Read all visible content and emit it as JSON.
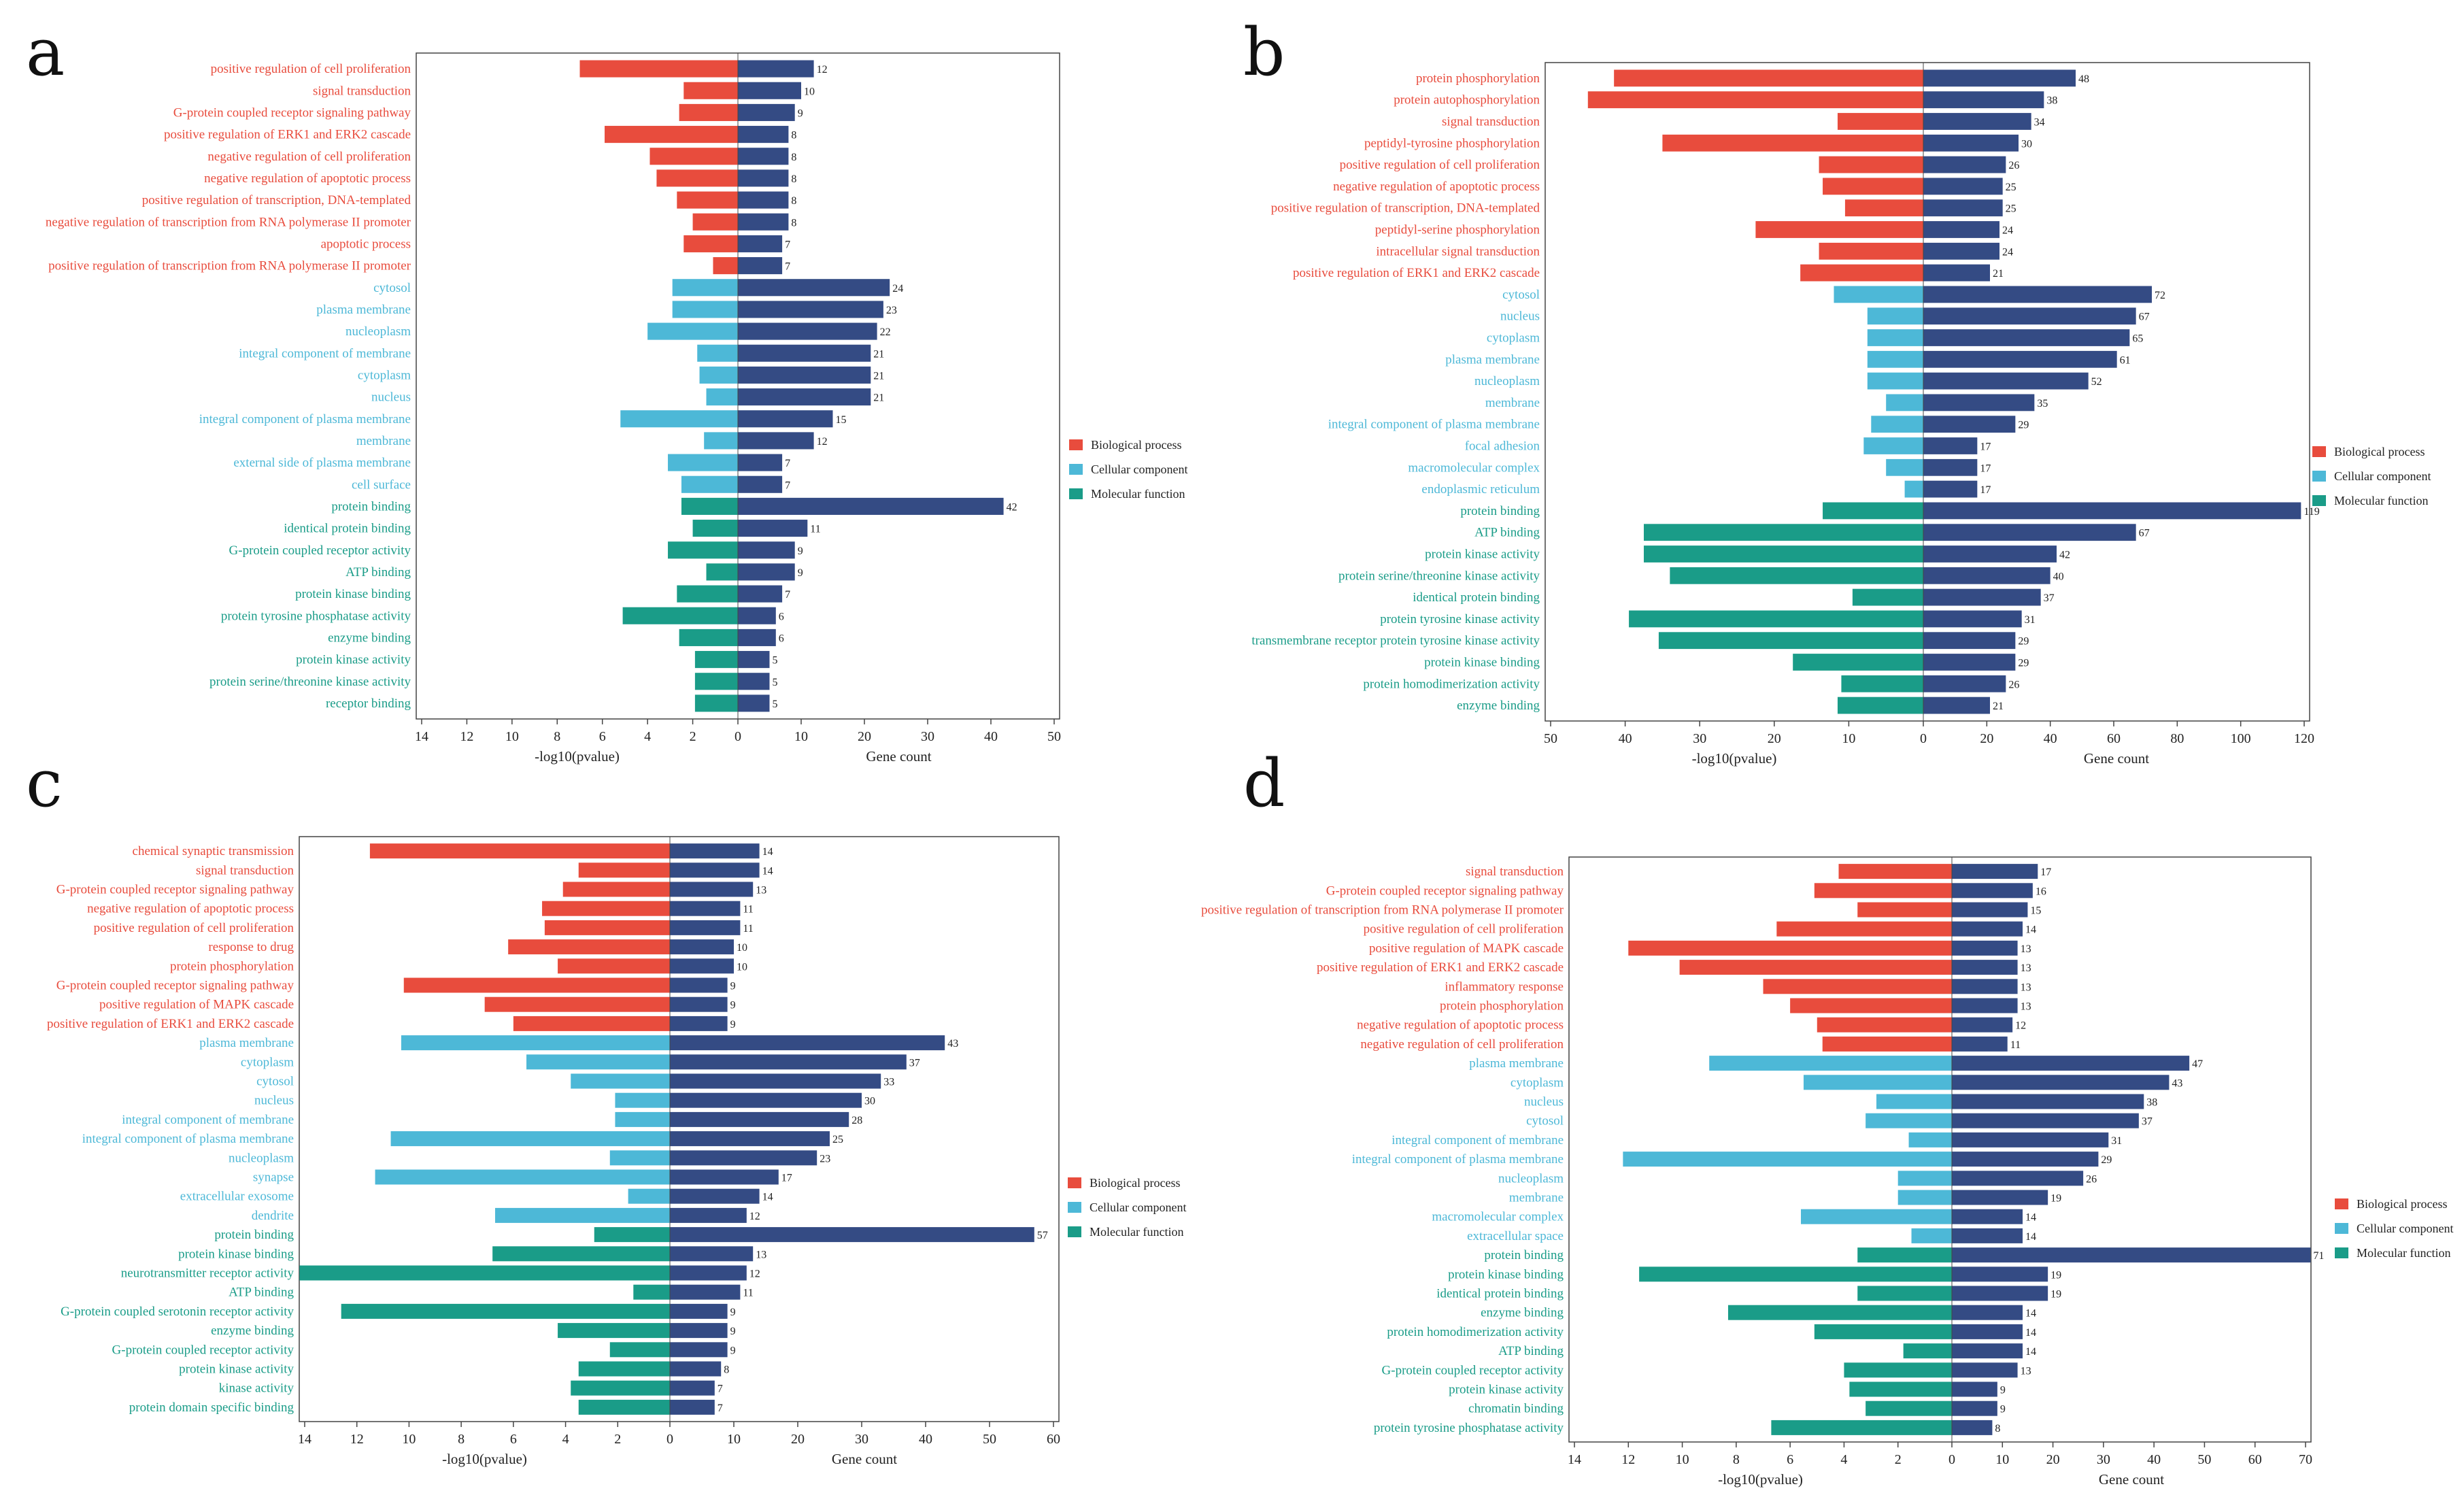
{
  "colors": {
    "bp": "#e84c3d",
    "cc": "#4db8d7",
    "mf": "#1a9c88",
    "count": "#344b84"
  },
  "chart_data": [
    {
      "type": "bar",
      "panel": "a",
      "xlabel_left": "-log10(pvalue)",
      "xlabel_right": "Gene count",
      "left_ticks": [
        14,
        12,
        10,
        8,
        6,
        4,
        2,
        0
      ],
      "right_ticks": [
        0,
        10,
        20,
        30,
        40,
        50
      ],
      "left_max": 14,
      "right_max": 50,
      "legend": [
        "Biological process",
        "Cellular component",
        "Molecular function"
      ],
      "terms": [
        {
          "label": "positive regulation of cell proliferation",
          "category": "bp",
          "pvalue": 7.0,
          "count": 12
        },
        {
          "label": "signal transduction",
          "category": "bp",
          "pvalue": 2.4,
          "count": 10
        },
        {
          "label": "G-protein coupled receptor signaling pathway",
          "category": "bp",
          "pvalue": 2.6,
          "count": 9
        },
        {
          "label": "positive regulation of ERK1 and ERK2 cascade",
          "category": "bp",
          "pvalue": 5.9,
          "count": 8
        },
        {
          "label": "negative regulation of cell proliferation",
          "category": "bp",
          "pvalue": 3.9,
          "count": 8
        },
        {
          "label": "negative regulation of apoptotic process",
          "category": "bp",
          "pvalue": 3.6,
          "count": 8
        },
        {
          "label": "positive regulation of transcription, DNA-templated",
          "category": "bp",
          "pvalue": 2.7,
          "count": 8
        },
        {
          "label": "negative regulation of transcription from RNA polymerase II promoter",
          "category": "bp",
          "pvalue": 2.0,
          "count": 8
        },
        {
          "label": "apoptotic process",
          "category": "bp",
          "pvalue": 2.4,
          "count": 7
        },
        {
          "label": "positive regulation of transcription from RNA polymerase II promoter",
          "category": "bp",
          "pvalue": 1.1,
          "count": 7
        },
        {
          "label": "cytosol",
          "category": "cc",
          "pvalue": 2.9,
          "count": 24
        },
        {
          "label": "plasma membrane",
          "category": "cc",
          "pvalue": 2.9,
          "count": 23
        },
        {
          "label": "nucleoplasm",
          "category": "cc",
          "pvalue": 4.0,
          "count": 22
        },
        {
          "label": "integral component of membrane",
          "category": "cc",
          "pvalue": 1.8,
          "count": 21
        },
        {
          "label": "cytoplasm",
          "category": "cc",
          "pvalue": 1.7,
          "count": 21
        },
        {
          "label": "nucleus",
          "category": "cc",
          "pvalue": 1.4,
          "count": 21
        },
        {
          "label": "integral component of plasma membrane",
          "category": "cc",
          "pvalue": 5.2,
          "count": 15
        },
        {
          "label": "membrane",
          "category": "cc",
          "pvalue": 1.5,
          "count": 12
        },
        {
          "label": "external side of plasma membrane",
          "category": "cc",
          "pvalue": 3.1,
          "count": 7
        },
        {
          "label": "cell surface",
          "category": "cc",
          "pvalue": 2.5,
          "count": 7
        },
        {
          "label": "protein binding",
          "category": "mf",
          "pvalue": 2.5,
          "count": 42
        },
        {
          "label": "identical protein binding",
          "category": "mf",
          "pvalue": 2.0,
          "count": 11
        },
        {
          "label": "G-protein coupled receptor activity",
          "category": "mf",
          "pvalue": 3.1,
          "count": 9
        },
        {
          "label": "ATP binding",
          "category": "mf",
          "pvalue": 1.4,
          "count": 9
        },
        {
          "label": "protein kinase binding",
          "category": "mf",
          "pvalue": 2.7,
          "count": 7
        },
        {
          "label": "protein tyrosine phosphatase activity",
          "category": "mf",
          "pvalue": 5.1,
          "count": 6
        },
        {
          "label": "enzyme binding",
          "category": "mf",
          "pvalue": 2.6,
          "count": 6
        },
        {
          "label": "protein kinase activity",
          "category": "mf",
          "pvalue": 1.9,
          "count": 5
        },
        {
          "label": "protein serine/threonine kinase activity",
          "category": "mf",
          "pvalue": 1.9,
          "count": 5
        },
        {
          "label": "receptor binding",
          "category": "mf",
          "pvalue": 1.9,
          "count": 5
        }
      ]
    },
    {
      "type": "bar",
      "panel": "b",
      "xlabel_left": "-log10(pvalue)",
      "xlabel_right": "Gene count",
      "left_ticks": [
        50,
        40,
        30,
        20,
        10,
        0
      ],
      "right_ticks": [
        0,
        20,
        40,
        60,
        80,
        100,
        120
      ],
      "left_max": 50,
      "right_max": 120,
      "legend": [
        "Biological process",
        "Cellular component",
        "Molecular function"
      ],
      "terms": [
        {
          "label": "protein phosphorylation",
          "category": "bp",
          "pvalue": 41.5,
          "count": 48
        },
        {
          "label": "protein autophosphorylation",
          "category": "bp",
          "pvalue": 45.0,
          "count": 38
        },
        {
          "label": "signal transduction",
          "category": "bp",
          "pvalue": 11.5,
          "count": 34
        },
        {
          "label": "peptidyl-tyrosine phosphorylation",
          "category": "bp",
          "pvalue": 35.0,
          "count": 30
        },
        {
          "label": "positive regulation of cell proliferation",
          "category": "bp",
          "pvalue": 14.0,
          "count": 26
        },
        {
          "label": "negative regulation of apoptotic process",
          "category": "bp",
          "pvalue": 13.5,
          "count": 25
        },
        {
          "label": "positive regulation of transcription, DNA-templated",
          "category": "bp",
          "pvalue": 10.5,
          "count": 25
        },
        {
          "label": "peptidyl-serine phosphorylation",
          "category": "bp",
          "pvalue": 22.5,
          "count": 24
        },
        {
          "label": "intracellular signal transduction",
          "category": "bp",
          "pvalue": 14.0,
          "count": 24
        },
        {
          "label": "positive regulation of ERK1 and ERK2 cascade",
          "category": "bp",
          "pvalue": 16.5,
          "count": 21
        },
        {
          "label": "cytosol",
          "category": "cc",
          "pvalue": 12.0,
          "count": 72
        },
        {
          "label": "nucleus",
          "category": "cc",
          "pvalue": 7.5,
          "count": 67
        },
        {
          "label": "cytoplasm",
          "category": "cc",
          "pvalue": 7.5,
          "count": 65
        },
        {
          "label": "plasma membrane",
          "category": "cc",
          "pvalue": 7.5,
          "count": 61
        },
        {
          "label": "nucleoplasm",
          "category": "cc",
          "pvalue": 7.5,
          "count": 52
        },
        {
          "label": "membrane",
          "category": "cc",
          "pvalue": 5.0,
          "count": 35
        },
        {
          "label": "integral component of plasma membrane",
          "category": "cc",
          "pvalue": 7.0,
          "count": 29
        },
        {
          "label": "focal adhesion",
          "category": "cc",
          "pvalue": 8.0,
          "count": 17
        },
        {
          "label": "macromolecular complex",
          "category": "cc",
          "pvalue": 5.0,
          "count": 17
        },
        {
          "label": "endoplasmic reticulum",
          "category": "cc",
          "pvalue": 2.5,
          "count": 17
        },
        {
          "label": "protein binding",
          "category": "mf",
          "pvalue": 13.5,
          "count": 119
        },
        {
          "label": "ATP binding",
          "category": "mf",
          "pvalue": 37.5,
          "count": 67
        },
        {
          "label": "protein kinase activity",
          "category": "mf",
          "pvalue": 37.5,
          "count": 42
        },
        {
          "label": "protein serine/threonine kinase activity",
          "category": "mf",
          "pvalue": 34.0,
          "count": 40
        },
        {
          "label": "identical protein binding",
          "category": "mf",
          "pvalue": 9.5,
          "count": 37
        },
        {
          "label": "protein tyrosine kinase activity",
          "category": "mf",
          "pvalue": 39.5,
          "count": 31
        },
        {
          "label": "transmembrane receptor protein tyrosine kinase activity",
          "category": "mf",
          "pvalue": 35.5,
          "count": 29
        },
        {
          "label": "protein kinase binding",
          "category": "mf",
          "pvalue": 17.5,
          "count": 29
        },
        {
          "label": "protein homodimerization activity",
          "category": "mf",
          "pvalue": 11.0,
          "count": 26
        },
        {
          "label": "enzyme binding",
          "category": "mf",
          "pvalue": 11.5,
          "count": 21
        }
      ]
    },
    {
      "type": "bar",
      "panel": "c",
      "xlabel_left": "-log10(pvalue)",
      "xlabel_right": "Gene count",
      "left_ticks": [
        14,
        12,
        10,
        8,
        6,
        4,
        2,
        0
      ],
      "right_ticks": [
        0,
        10,
        20,
        30,
        40,
        50,
        60
      ],
      "left_max": 14,
      "right_max": 60,
      "legend": [
        "Biological process",
        "Cellular component",
        "Molecular function"
      ],
      "terms": [
        {
          "label": "chemical synaptic transmission",
          "category": "bp",
          "pvalue": 11.5,
          "count": 14
        },
        {
          "label": "signal transduction",
          "category": "bp",
          "pvalue": 3.5,
          "count": 14
        },
        {
          "label": "G-protein coupled receptor signaling pathway",
          "category": "bp",
          "pvalue": 4.1,
          "count": 13
        },
        {
          "label": "negative regulation of apoptotic process",
          "category": "bp",
          "pvalue": 4.9,
          "count": 11
        },
        {
          "label": "positive regulation of cell proliferation",
          "category": "bp",
          "pvalue": 4.8,
          "count": 11
        },
        {
          "label": "response to drug",
          "category": "bp",
          "pvalue": 6.2,
          "count": 10
        },
        {
          "label": "protein phosphorylation",
          "category": "bp",
          "pvalue": 4.3,
          "count": 10
        },
        {
          "label": "G-protein coupled receptor signaling pathway",
          "category": "bp",
          "pvalue": 10.2,
          "count": 9
        },
        {
          "label": "positive regulation of MAPK cascade",
          "category": "bp",
          "pvalue": 7.1,
          "count": 9
        },
        {
          "label": "positive regulation of ERK1 and ERK2 cascade",
          "category": "bp",
          "pvalue": 6.0,
          "count": 9
        },
        {
          "label": "plasma membrane",
          "category": "cc",
          "pvalue": 10.3,
          "count": 43
        },
        {
          "label": "cytoplasm",
          "category": "cc",
          "pvalue": 5.5,
          "count": 37
        },
        {
          "label": "cytosol",
          "category": "cc",
          "pvalue": 3.8,
          "count": 33
        },
        {
          "label": "nucleus",
          "category": "cc",
          "pvalue": 2.1,
          "count": 30
        },
        {
          "label": "integral component of membrane",
          "category": "cc",
          "pvalue": 2.1,
          "count": 28
        },
        {
          "label": "integral component of plasma membrane",
          "category": "cc",
          "pvalue": 10.7,
          "count": 25
        },
        {
          "label": "nucleoplasm",
          "category": "cc",
          "pvalue": 2.3,
          "count": 23
        },
        {
          "label": "synapse",
          "category": "cc",
          "pvalue": 11.3,
          "count": 17
        },
        {
          "label": "extracellular exosome",
          "category": "cc",
          "pvalue": 1.6,
          "count": 14
        },
        {
          "label": "dendrite",
          "category": "cc",
          "pvalue": 6.7,
          "count": 12
        },
        {
          "label": "protein binding",
          "category": "mf",
          "pvalue": 2.9,
          "count": 57
        },
        {
          "label": "protein kinase binding",
          "category": "mf",
          "pvalue": 6.8,
          "count": 13
        },
        {
          "label": "neurotransmitter receptor activity",
          "category": "mf",
          "pvalue": 14.2,
          "count": 12
        },
        {
          "label": "ATP binding",
          "category": "mf",
          "pvalue": 1.4,
          "count": 11
        },
        {
          "label": "G-protein coupled serotonin receptor activity",
          "category": "mf",
          "pvalue": 12.6,
          "count": 9
        },
        {
          "label": "enzyme binding",
          "category": "mf",
          "pvalue": 4.3,
          "count": 9
        },
        {
          "label": "G-protein coupled receptor activity",
          "category": "mf",
          "pvalue": 2.3,
          "count": 9
        },
        {
          "label": "protein kinase activity",
          "category": "mf",
          "pvalue": 3.5,
          "count": 8
        },
        {
          "label": "kinase activity",
          "category": "mf",
          "pvalue": 3.8,
          "count": 7
        },
        {
          "label": "protein domain specific binding",
          "category": "mf",
          "pvalue": 3.5,
          "count": 7
        }
      ]
    },
    {
      "type": "bar",
      "panel": "d",
      "xlabel_left": "-log10(pvalue)",
      "xlabel_right": "Gene count",
      "left_ticks": [
        14,
        12,
        10,
        8,
        6,
        4,
        2,
        0
      ],
      "right_ticks": [
        0,
        10,
        20,
        30,
        40,
        50,
        60,
        70
      ],
      "left_max": 14,
      "right_max": 70,
      "legend": [
        "Biological process",
        "Cellular component",
        "Molecular function"
      ],
      "terms": [
        {
          "label": "signal transduction",
          "category": "bp",
          "pvalue": 4.2,
          "count": 17
        },
        {
          "label": "G-protein coupled receptor signaling pathway",
          "category": "bp",
          "pvalue": 5.1,
          "count": 16
        },
        {
          "label": "positive regulation of transcription from RNA polymerase II promoter",
          "category": "bp",
          "pvalue": 3.5,
          "count": 15
        },
        {
          "label": "positive regulation of cell proliferation",
          "category": "bp",
          "pvalue": 6.5,
          "count": 14
        },
        {
          "label": "positive regulation of MAPK cascade",
          "category": "bp",
          "pvalue": 12.0,
          "count": 13
        },
        {
          "label": "positive regulation of ERK1 and ERK2 cascade",
          "category": "bp",
          "pvalue": 10.1,
          "count": 13
        },
        {
          "label": "inflammatory response",
          "category": "bp",
          "pvalue": 7.0,
          "count": 13
        },
        {
          "label": "protein phosphorylation",
          "category": "bp",
          "pvalue": 6.0,
          "count": 13
        },
        {
          "label": "negative regulation of apoptotic process",
          "category": "bp",
          "pvalue": 5.0,
          "count": 12
        },
        {
          "label": "negative regulation of cell proliferation",
          "category": "bp",
          "pvalue": 4.8,
          "count": 11
        },
        {
          "label": "plasma membrane",
          "category": "cc",
          "pvalue": 9.0,
          "count": 47
        },
        {
          "label": "cytoplasm",
          "category": "cc",
          "pvalue": 5.5,
          "count": 43
        },
        {
          "label": "nucleus",
          "category": "cc",
          "pvalue": 2.8,
          "count": 38
        },
        {
          "label": "cytosol",
          "category": "cc",
          "pvalue": 3.2,
          "count": 37
        },
        {
          "label": "integral component of membrane",
          "category": "cc",
          "pvalue": 1.6,
          "count": 31
        },
        {
          "label": "integral component of plasma membrane",
          "category": "cc",
          "pvalue": 12.2,
          "count": 29
        },
        {
          "label": "nucleoplasm",
          "category": "cc",
          "pvalue": 2.0,
          "count": 26
        },
        {
          "label": "membrane",
          "category": "cc",
          "pvalue": 2.0,
          "count": 19
        },
        {
          "label": "macromolecular complex",
          "category": "cc",
          "pvalue": 5.6,
          "count": 14
        },
        {
          "label": "extracellular space",
          "category": "cc",
          "pvalue": 1.5,
          "count": 14
        },
        {
          "label": "protein binding",
          "category": "mf",
          "pvalue": 3.5,
          "count": 71
        },
        {
          "label": "protein kinase binding",
          "category": "mf",
          "pvalue": 11.6,
          "count": 19
        },
        {
          "label": "identical protein binding",
          "category": "mf",
          "pvalue": 3.5,
          "count": 19
        },
        {
          "label": "enzyme binding",
          "category": "mf",
          "pvalue": 8.3,
          "count": 14
        },
        {
          "label": "protein homodimerization activity",
          "category": "mf",
          "pvalue": 5.1,
          "count": 14
        },
        {
          "label": "ATP binding",
          "category": "mf",
          "pvalue": 1.8,
          "count": 14
        },
        {
          "label": "G-protein coupled receptor activity",
          "category": "mf",
          "pvalue": 4.0,
          "count": 13
        },
        {
          "label": "protein kinase activity",
          "category": "mf",
          "pvalue": 3.8,
          "count": 9
        },
        {
          "label": "chromatin binding",
          "category": "mf",
          "pvalue": 3.2,
          "count": 9
        },
        {
          "label": "protein tyrosine phosphatase activity",
          "category": "mf",
          "pvalue": 6.7,
          "count": 8
        }
      ]
    }
  ]
}
